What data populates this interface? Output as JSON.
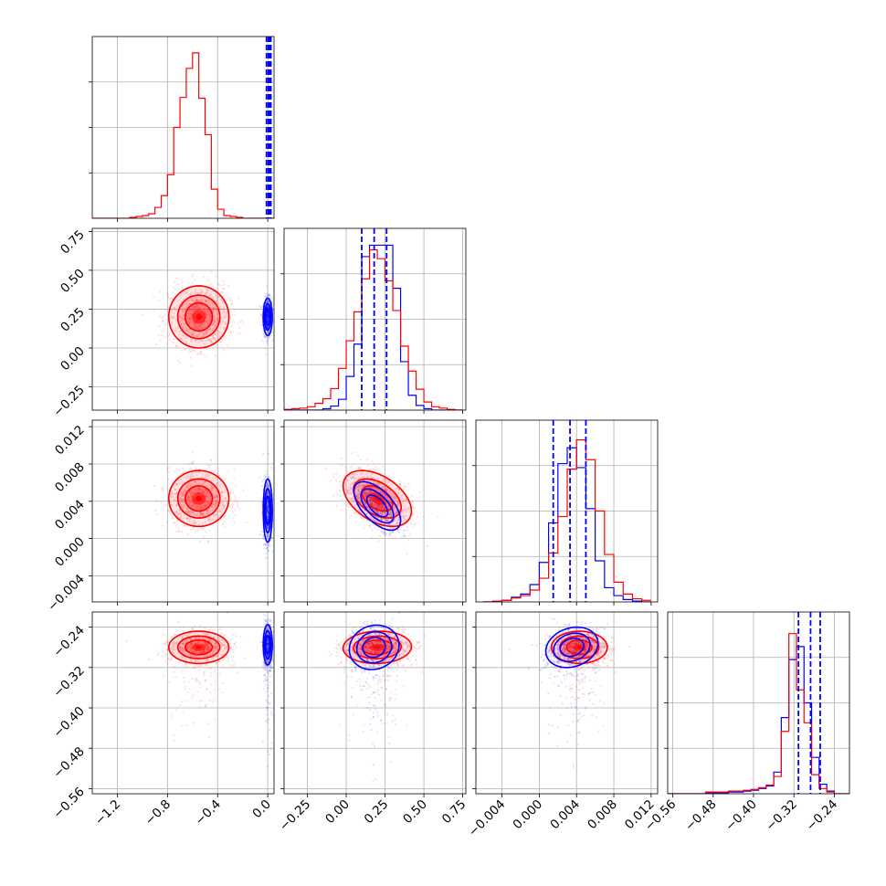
{
  "chart_data": {
    "type": "corner",
    "colors": {
      "sample_a": "#ff0000",
      "sample_b": "#0000ff",
      "grid": "#b0b0b0"
    },
    "grid": true,
    "title": "",
    "parameters": [
      {
        "range": [
          -1.4,
          0.05
        ],
        "ticks": [
          -1.2,
          -0.8,
          -0.4,
          0.0
        ],
        "tick_labels": [
          "−1.2",
          "−0.8",
          "−0.4",
          "0.0"
        ]
      },
      {
        "range": [
          -0.4,
          0.77
        ],
        "ticks": [
          -0.25,
          0.0,
          0.25,
          0.5,
          0.75
        ],
        "tick_labels": [
          "−0.25",
          "0.00",
          "0.25",
          "0.50",
          "0.75"
        ]
      },
      {
        "range": [
          -0.0068,
          0.0127
        ],
        "ticks": [
          -0.004,
          0.0,
          0.004,
          0.008,
          0.012
        ],
        "tick_labels": [
          "−0.004",
          "0.000",
          "0.004",
          "0.008",
          "0.012"
        ]
      },
      {
        "range": [
          -0.57,
          -0.21
        ],
        "ticks": [
          -0.56,
          -0.48,
          -0.4,
          -0.32,
          -0.24
        ],
        "tick_labels": [
          "−0.56",
          "−0.48",
          "−0.40",
          "−0.32",
          "−0.24"
        ]
      }
    ],
    "diagonal": [
      {
        "bins": [
          -1.4,
          -1.35,
          -1.3,
          -1.25,
          -1.2,
          -1.15,
          -1.1,
          -1.05,
          -1.0,
          -0.95,
          -0.9,
          -0.85,
          -0.8,
          -0.75,
          -0.7,
          -0.65,
          -0.6,
          -0.55,
          -0.5,
          -0.45,
          -0.4,
          -0.35,
          -0.3,
          -0.25,
          -0.2,
          -0.15,
          -0.1,
          -0.05,
          0.0,
          0.05
        ],
        "red": [
          0,
          0,
          0,
          0,
          0,
          0,
          1,
          2,
          3,
          5,
          12,
          25,
          48,
          100,
          133,
          165,
          182,
          132,
          92,
          32,
          10,
          3,
          2,
          1,
          0,
          0,
          0,
          0,
          0
        ],
        "blue_lines": [
          -0.01,
          0.005,
          0.015,
          0.025
        ],
        "hist_max": 200
      },
      {
        "bins": [
          -0.4,
          -0.35,
          -0.3,
          -0.25,
          -0.2,
          -0.15,
          -0.1,
          -0.05,
          0.0,
          0.05,
          0.1,
          0.15,
          0.2,
          0.25,
          0.3,
          0.35,
          0.4,
          0.45,
          0.5,
          0.55,
          0.6,
          0.65,
          0.7,
          0.75
        ],
        "red": [
          1,
          2,
          3,
          5,
          10,
          17,
          32,
          62,
          103,
          146,
          195,
          238,
          225,
          192,
          148,
          95,
          58,
          31,
          12,
          5,
          3,
          1,
          0
        ],
        "blue": [
          0,
          0,
          0,
          0,
          0,
          2,
          6,
          16,
          50,
          98,
          228,
          245,
          245,
          245,
          181,
          72,
          22,
          7,
          2,
          0,
          0,
          0,
          0
        ],
        "blue_lines": [
          0.1,
          0.18,
          0.26
        ],
        "hist_max": 270
      },
      {
        "bins": [
          -0.006,
          -0.005,
          -0.004,
          -0.003,
          -0.002,
          -0.001,
          0.0,
          0.001,
          0.002,
          0.003,
          0.004,
          0.005,
          0.006,
          0.007,
          0.008,
          0.009,
          0.01,
          0.011,
          0.012
        ],
        "red": [
          0,
          1,
          2,
          5,
          8,
          15,
          30,
          62,
          108,
          168,
          205,
          180,
          115,
          60,
          25,
          10,
          4,
          2
        ],
        "blue": [
          0,
          0,
          2,
          6,
          10,
          22,
          50,
          100,
          175,
          195,
          170,
          118,
          52,
          18,
          8,
          3,
          1,
          0
        ],
        "blue_lines": [
          0.0015,
          0.0033,
          0.005
        ],
        "hist_max": 230
      },
      {
        "bins": [
          -0.57,
          -0.555,
          -0.54,
          -0.525,
          -0.51,
          -0.495,
          -0.48,
          -0.465,
          -0.45,
          -0.435,
          -0.42,
          -0.405,
          -0.39,
          -0.375,
          -0.36,
          -0.345,
          -0.33,
          -0.315,
          -0.3,
          -0.285,
          -0.27,
          -0.255,
          -0.24,
          -0.225,
          -0.21
        ],
        "red": [
          0,
          0,
          0,
          0,
          0,
          2,
          2,
          2,
          3,
          3,
          4,
          5,
          7,
          10,
          20,
          72,
          185,
          120,
          82,
          22,
          6,
          2,
          0,
          0
        ],
        "blue": [
          0,
          0,
          0,
          0,
          0,
          1,
          1,
          1,
          2,
          2,
          3,
          4,
          6,
          9,
          25,
          88,
          155,
          170,
          105,
          42,
          11,
          3,
          0,
          0
        ],
        "blue_lines": [
          -0.311,
          -0.287,
          -0.268
        ],
        "hist_max": 210
      }
    ],
    "pairs": [
      {
        "row": 1,
        "col": 0,
        "red": {
          "mean": [
            -0.55,
            0.2
          ],
          "sd": [
            0.12,
            0.1
          ],
          "rho": 0.0
        },
        "blue": {
          "mean": [
            0.0,
            0.2
          ],
          "sd": [
            0.018,
            0.06
          ],
          "rho": 0.0
        }
      },
      {
        "row": 2,
        "col": 0,
        "red": {
          "mean": [
            -0.55,
            0.0043
          ],
          "sd": [
            0.12,
            0.0015
          ],
          "rho": 0.0
        },
        "blue": {
          "mean": [
            0.0,
            0.003
          ],
          "sd": [
            0.018,
            0.0017
          ],
          "rho": 0.0
        }
      },
      {
        "row": 2,
        "col": 1,
        "red": {
          "mean": [
            0.2,
            0.0043
          ],
          "sd": [
            0.11,
            0.0015
          ],
          "rho": -0.45
        },
        "blue": {
          "mean": [
            0.2,
            0.0035
          ],
          "sd": [
            0.075,
            0.0013
          ],
          "rho": -0.6
        }
      },
      {
        "row": 3,
        "col": 0,
        "red": {
          "mean": [
            -0.55,
            -0.28
          ],
          "sd": [
            0.12,
            0.016
          ],
          "rho": 0.0
        },
        "blue": {
          "mean": [
            0.0,
            -0.275
          ],
          "sd": [
            0.018,
            0.02
          ],
          "rho": 0.0
        }
      },
      {
        "row": 3,
        "col": 1,
        "red": {
          "mean": [
            0.2,
            -0.28
          ],
          "sd": [
            0.11,
            0.016
          ],
          "rho": 0.05
        },
        "blue": {
          "mean": [
            0.18,
            -0.28
          ],
          "sd": [
            0.08,
            0.022
          ],
          "rho": 0.1
        }
      },
      {
        "row": 3,
        "col": 2,
        "red": {
          "mean": [
            0.0043,
            -0.28
          ],
          "sd": [
            0.0015,
            0.016
          ],
          "rho": 0.0
        },
        "blue": {
          "mean": [
            0.0035,
            -0.28
          ],
          "sd": [
            0.0014,
            0.02
          ],
          "rho": 0.2
        }
      }
    ]
  }
}
